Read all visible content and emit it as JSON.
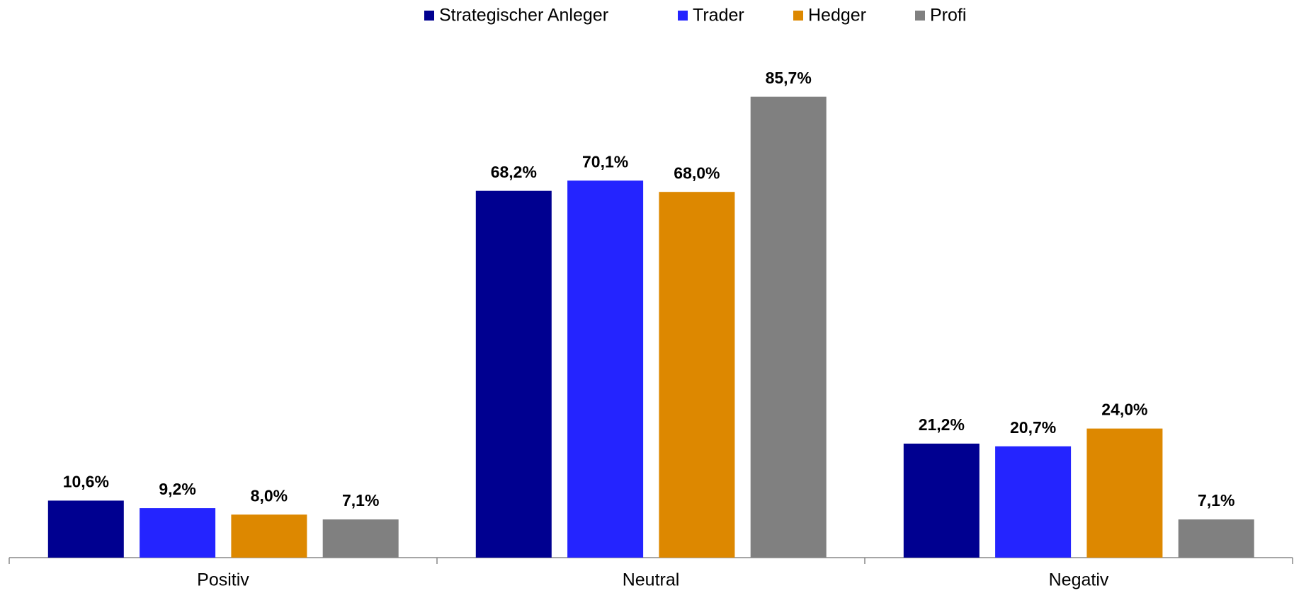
{
  "chart_data": {
    "type": "bar",
    "categories": [
      "Positiv",
      "Neutral",
      "Negativ"
    ],
    "series": [
      {
        "name": "Strategischer Anleger",
        "color": "#000090",
        "values": [
          10.6,
          68.2,
          21.2
        ],
        "value_labels": [
          "10,6%",
          "68,2%",
          "21,2%"
        ]
      },
      {
        "name": "Trader",
        "color": "#2424ff",
        "values": [
          9.2,
          70.1,
          20.7
        ],
        "value_labels": [
          "9,2%",
          "70,1%",
          "20,7%"
        ]
      },
      {
        "name": "Hedger",
        "color": "#dd8800",
        "values": [
          8.0,
          68.0,
          24.0
        ],
        "value_labels": [
          "8,0%",
          "68,0%",
          "24,0%"
        ]
      },
      {
        "name": "Profi",
        "color": "#808080",
        "values": [
          7.1,
          85.7,
          7.1
        ],
        "value_labels": [
          "7,1%",
          "85,7%",
          "7,1%"
        ]
      }
    ],
    "legend": "top"
  }
}
